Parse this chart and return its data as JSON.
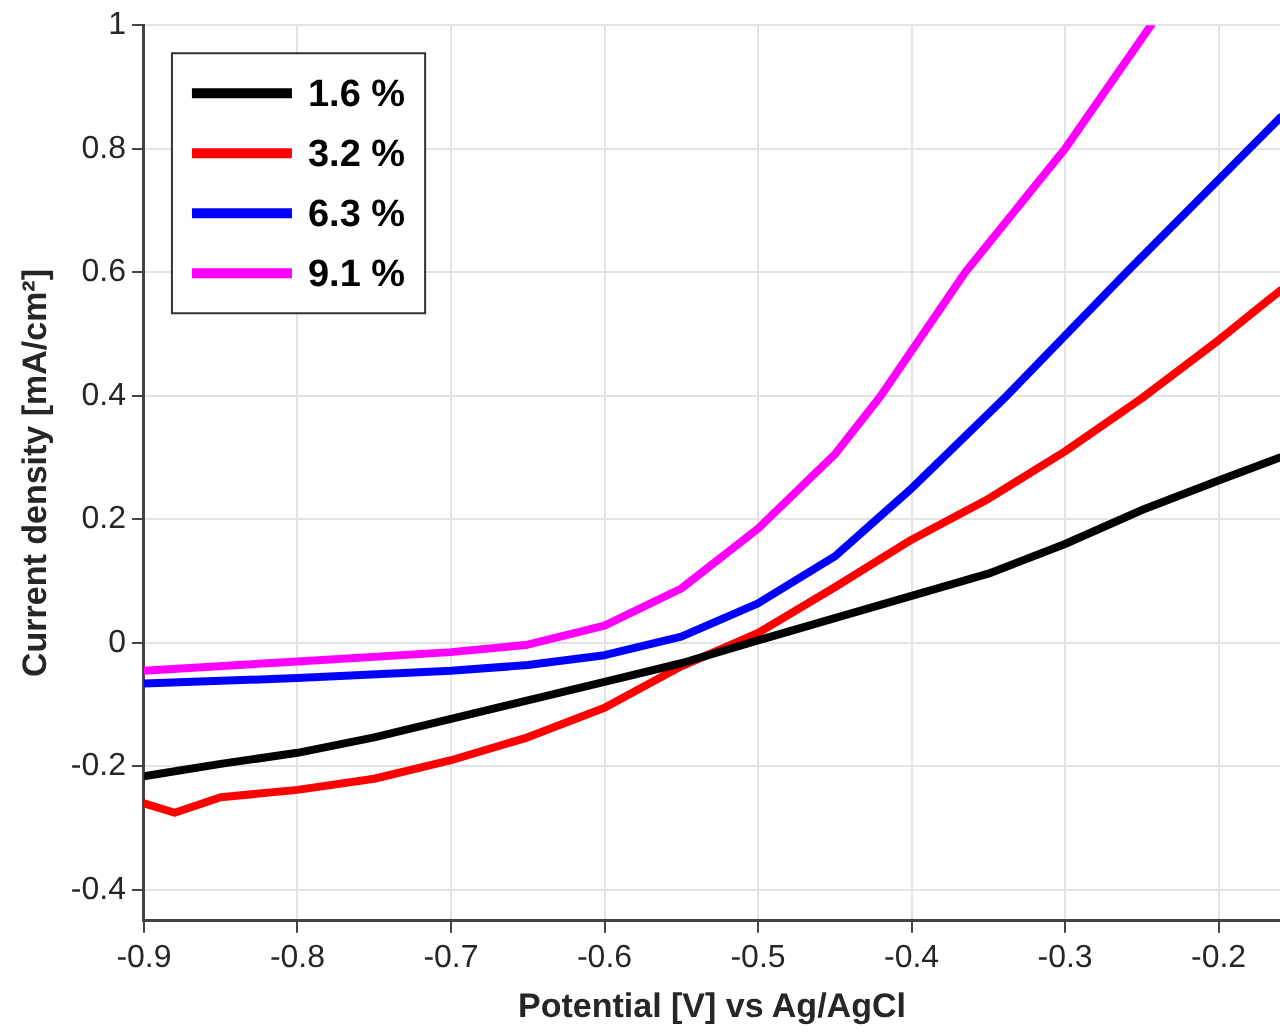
{
  "chart_data": {
    "type": "line",
    "xlabel": "Potential [V] vs Ag/AgCl",
    "ylabel": "Current density [mA/cm²]",
    "xlim": [
      -0.9,
      -0.16
    ],
    "ylim": [
      -0.45,
      1
    ],
    "xticks": [
      -0.9,
      -0.8,
      -0.7,
      -0.6,
      -0.5,
      -0.4,
      -0.3,
      -0.2
    ],
    "yticks": [
      -0.4,
      -0.2,
      0,
      0.2,
      0.4,
      0.6,
      0.8,
      1
    ],
    "grid": true,
    "legend": "top left",
    "marker": "none",
    "line_style": "solid",
    "series": [
      {
        "name": "1.6 %",
        "color": "#000000",
        "x": [
          -0.9,
          -0.85,
          -0.8,
          -0.75,
          -0.7,
          -0.65,
          -0.6,
          -0.55,
          -0.5,
          -0.45,
          -0.4,
          -0.35,
          -0.3,
          -0.25,
          -0.2,
          -0.16
        ],
        "values": [
          -0.216,
          -0.196,
          -0.178,
          -0.153,
          -0.123,
          -0.093,
          -0.063,
          -0.033,
          0.004,
          0.04,
          0.076,
          0.112,
          0.16,
          0.215,
          0.263,
          0.3
        ]
      },
      {
        "name": "3.2 %",
        "color": "#ff0000",
        "x": [
          -0.9,
          -0.88,
          -0.85,
          -0.8,
          -0.75,
          -0.7,
          -0.65,
          -0.6,
          -0.55,
          -0.5,
          -0.45,
          -0.4,
          -0.35,
          -0.3,
          -0.25,
          -0.2,
          -0.16
        ],
        "values": [
          -0.26,
          -0.275,
          -0.25,
          -0.238,
          -0.22,
          -0.19,
          -0.153,
          -0.105,
          -0.038,
          0.016,
          0.09,
          0.167,
          0.233,
          0.31,
          0.396,
          0.49,
          0.57
        ]
      },
      {
        "name": "6.3 %",
        "color": "#0000ff",
        "x": [
          -0.9,
          -0.8,
          -0.7,
          -0.65,
          -0.6,
          -0.55,
          -0.5,
          -0.45,
          -0.4,
          -0.338,
          -0.26,
          -0.18,
          -0.16
        ],
        "values": [
          -0.066,
          -0.057,
          -0.045,
          -0.036,
          -0.02,
          0.01,
          0.064,
          0.14,
          0.25,
          0.4,
          0.6,
          0.8,
          0.85
        ]
      },
      {
        "name": "9.1 %",
        "color": "#ff00ff",
        "x": [
          -0.9,
          -0.8,
          -0.7,
          -0.65,
          -0.6,
          -0.55,
          -0.5,
          -0.45,
          -0.42,
          -0.365,
          -0.3,
          -0.244
        ],
        "values": [
          -0.045,
          -0.03,
          -0.015,
          -0.003,
          0.028,
          0.088,
          0.185,
          0.305,
          0.4,
          0.6,
          0.8,
          1
        ]
      }
    ]
  }
}
